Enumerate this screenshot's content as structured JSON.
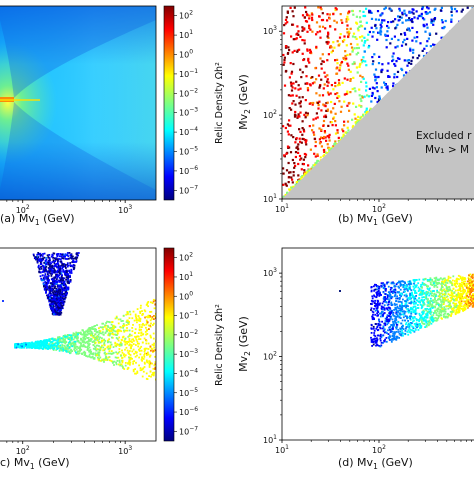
{
  "chart_data": [
    {
      "type": "heatmap",
      "panel": "(a)",
      "xlabel": "(a)  Mv",
      "xlabel_sub": "1",
      "xlabel_unit": " (GeV)",
      "xscale": "log",
      "xlim": [
        60,
        2000
      ],
      "xticks": [
        {
          "v": 100,
          "b": "10",
          "e": "2"
        },
        {
          "v": 1000,
          "b": "10",
          "e": "3"
        }
      ],
      "colorbar": {
        "label": "Relic Density Ωh²",
        "scale": "log",
        "ticks": [
          {
            "b": "10",
            "e": "2"
          },
          {
            "b": "10",
            "e": "1"
          },
          {
            "b": "10",
            "e": "0"
          },
          {
            "b": "10",
            "e": "−1"
          },
          {
            "b": "10",
            "e": "−2"
          },
          {
            "b": "10",
            "e": "−3"
          },
          {
            "b": "10",
            "e": "−4"
          },
          {
            "b": "10",
            "e": "−5"
          },
          {
            "b": "10",
            "e": "−6"
          },
          {
            "b": "10",
            "e": "−7"
          }
        ]
      }
    },
    {
      "type": "scatter",
      "panel": "(b)",
      "xlabel": "(b)  Mv",
      "xlabel_sub": "1",
      "xlabel_unit": " (GeV)",
      "ylabel": "Mv",
      "ylabel_sub": "2",
      "ylabel_unit": " (GeV)",
      "xscale": "log",
      "yscale": "log",
      "xlim": [
        10,
        1000
      ],
      "ylim": [
        10,
        2000
      ],
      "xticks": [
        {
          "v": 10,
          "b": "10",
          "e": "1"
        },
        {
          "v": 100,
          "b": "10",
          "e": "2"
        }
      ],
      "yticks": [
        {
          "v": 10,
          "b": "10",
          "e": "1"
        },
        {
          "v": 100,
          "b": "10",
          "e": "2"
        },
        {
          "v": 1000,
          "b": "10",
          "e": "3"
        }
      ],
      "annotation": {
        "line1": "Excluded r",
        "line2": "Mv₁ > M"
      }
    },
    {
      "type": "scatter",
      "panel": "(c)",
      "xlabel": "c)  Mv",
      "xlabel_sub": "1",
      "xlabel_unit": " (GeV)",
      "xscale": "log",
      "xlim": [
        60,
        2000
      ],
      "xticks": [
        {
          "v": 100,
          "b": "10",
          "e": "2"
        },
        {
          "v": 1000,
          "b": "10",
          "e": "3"
        }
      ],
      "colorbar": {
        "label": "Relic Density Ωh²",
        "scale": "log",
        "ticks": [
          {
            "b": "10",
            "e": "2"
          },
          {
            "b": "10",
            "e": "1"
          },
          {
            "b": "10",
            "e": "0"
          },
          {
            "b": "10",
            "e": "−1"
          },
          {
            "b": "10",
            "e": "−2"
          },
          {
            "b": "10",
            "e": "−3"
          },
          {
            "b": "10",
            "e": "−4"
          },
          {
            "b": "10",
            "e": "−5"
          },
          {
            "b": "10",
            "e": "−6"
          },
          {
            "b": "10",
            "e": "−7"
          }
        ]
      }
    },
    {
      "type": "scatter",
      "panel": "(d)",
      "xlabel": "(d)  Mv",
      "xlabel_sub": "1",
      "xlabel_unit": " (GeV)",
      "ylabel": "Mv",
      "ylabel_sub": "2",
      "ylabel_unit": " (GeV)",
      "xscale": "log",
      "yscale": "log",
      "xlim": [
        10,
        1000
      ],
      "ylim": [
        10,
        2000
      ],
      "xticks": [
        {
          "v": 10,
          "b": "10",
          "e": "1"
        },
        {
          "v": 100,
          "b": "10",
          "e": "2"
        }
      ],
      "yticks": [
        {
          "v": 10,
          "b": "10",
          "e": "1"
        },
        {
          "v": 100,
          "b": "10",
          "e": "2"
        },
        {
          "v": 1000,
          "b": "10",
          "e": "3"
        }
      ]
    }
  ],
  "colors": {
    "excluded": "#c4c4c4",
    "jet": [
      "#00007f",
      "#0000ff",
      "#007fff",
      "#00ffff",
      "#7fff7f",
      "#ffff00",
      "#ff7f00",
      "#ff0000",
      "#7f0000"
    ]
  }
}
